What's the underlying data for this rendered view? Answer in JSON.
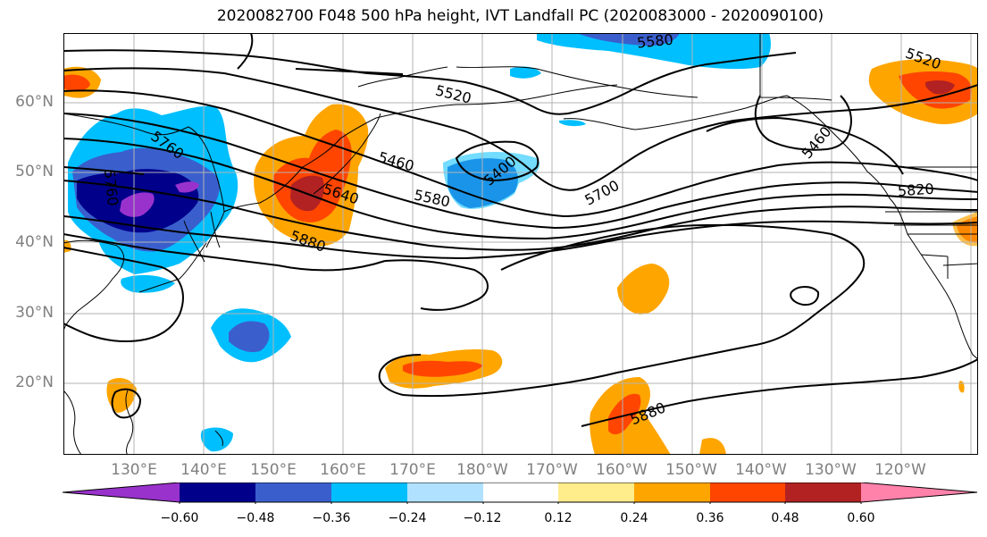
{
  "title": "2020082700 F048 500 hPa height, IVT Landfall PC (2020083000 - 2020090100)",
  "lat_labels": [
    "60°N",
    "50°N",
    "40°N",
    "30°N",
    "20°N"
  ],
  "lon_labels": [
    "130°E",
    "140°E",
    "150°E",
    "160°E",
    "170°E",
    "180°W",
    "170°W",
    "160°W",
    "150°W",
    "140°W",
    "130°W",
    "120°W"
  ],
  "contour_labels": [
    "5580",
    "5520",
    "5520",
    "5760",
    "5460",
    "5400",
    "5640",
    "5580",
    "5700",
    "5820",
    "5880",
    "5880",
    "5460",
    "5760"
  ],
  "colorbar": {
    "colors": [
      "#9932CC",
      "#00008B",
      "#3A5FCD",
      "#00BFFF",
      "#B0E2FF",
      "#FFFFFF",
      "#FFEC8B",
      "#FFA500",
      "#FF4500",
      "#B22222",
      "#FF82AB"
    ],
    "tick_labels": [
      "−0.60",
      "−0.48",
      "−0.36",
      "−0.24",
      "−0.12",
      "0.12",
      "0.24",
      "0.36",
      "0.48",
      "0.60"
    ]
  }
}
